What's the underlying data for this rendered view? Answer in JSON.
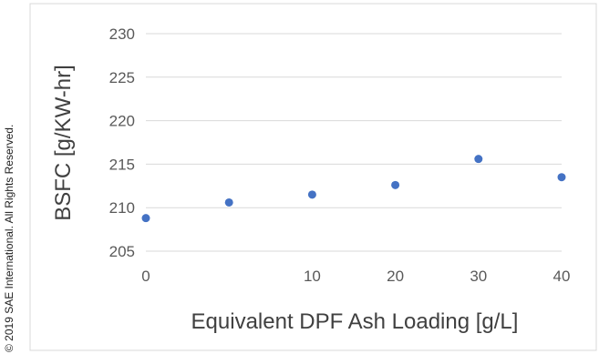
{
  "copyright": "© 2019 SAE International. All Rights Reserved.",
  "chart_data": {
    "type": "scatter",
    "title": "",
    "xlabel": "Equivalent DPF Ash Loading [g/L]",
    "ylabel": "BSFC [g/KW-hr]",
    "categories": [
      "0",
      "5",
      "10",
      "20",
      "30",
      "40"
    ],
    "x_tick_labels": [
      "0",
      "10",
      "20",
      "30",
      "40"
    ],
    "y_tick_labels": [
      "205",
      "210",
      "215",
      "220",
      "225",
      "230"
    ],
    "ylim": [
      205,
      230
    ],
    "grid": true,
    "legend": "none",
    "marker_color": "#4472C4",
    "series": [
      {
        "values": [
          208.8,
          210.6,
          211.5,
          212.6,
          215.6,
          213.5
        ]
      }
    ]
  }
}
